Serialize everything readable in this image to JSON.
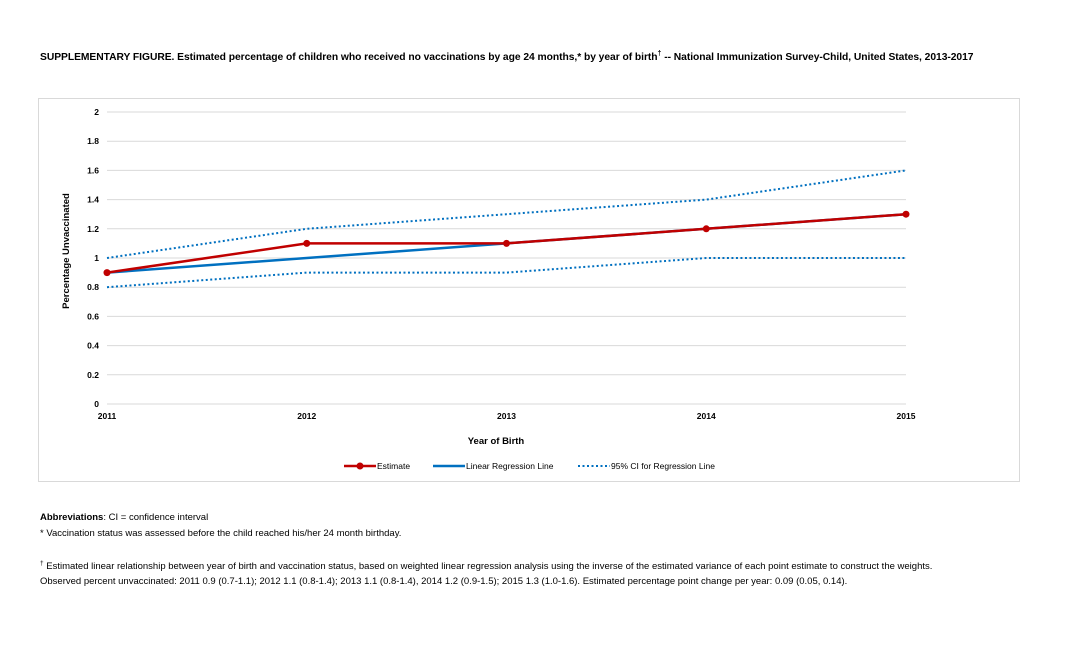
{
  "title": {
    "main": "SUPPLEMENTARY FIGURE. Estimated percentage of children who received no vaccinations by age 24 months,* by year of birth",
    "dagger": "†",
    "rest": " -- National Immunization Survey-Child, United States, 2013-2017"
  },
  "chart_data": {
    "type": "line",
    "title": "Estimated percentage of children who received no vaccinations by age 24 months, by year of birth",
    "xlabel": "Year of Birth",
    "ylabel": "Percentage Unvaccinated",
    "x": [
      2011,
      2012,
      2013,
      2014,
      2015
    ],
    "x_tick_labels": [
      "2011",
      "2012",
      "2013",
      "2014",
      "2015"
    ],
    "ylim": [
      0,
      2
    ],
    "y_ticks": [
      0,
      0.2,
      0.4,
      0.6,
      0.8,
      1,
      1.2,
      1.4,
      1.6,
      1.8,
      2
    ],
    "y_tick_labels": [
      "0",
      "0.2",
      "0.4",
      "0.6",
      "0.8",
      "1",
      "1.2",
      "1.4",
      "1.6",
      "1.8",
      "2"
    ],
    "grid": true,
    "legend_position": "bottom-center",
    "series": [
      {
        "name": "Estimate",
        "color": "#c00000",
        "style": "solid-markers",
        "values": [
          0.9,
          1.1,
          1.1,
          1.2,
          1.3
        ]
      },
      {
        "name": "Linear Regression Line",
        "color": "#0070c0",
        "style": "solid",
        "values": [
          0.9,
          1.0,
          1.1,
          1.2,
          1.3
        ]
      },
      {
        "name": "95% CI for Regression Line",
        "color": "#0070c0",
        "style": "dotted",
        "values": [
          1.0,
          1.2,
          1.3,
          1.4,
          1.6
        ]
      },
      {
        "name": "95% CI for Regression Line (lower)",
        "color": "#0070c0",
        "style": "dotted",
        "legend": false,
        "values": [
          0.8,
          0.9,
          0.9,
          1.0,
          1.0
        ]
      }
    ],
    "legend": [
      "Estimate",
      "Linear Regression Line",
      "95% CI for Regression Line"
    ]
  },
  "notes": {
    "abbrev_label": "Abbreviations",
    "abbrev_text": ": CI = confidence interval",
    "asterisk": "* Vaccination status was assessed before the child reached his/her 24 month birthday.",
    "dagger_mark": "†",
    "dagger_line1": " Estimated linear relationship between year of birth and vaccination status, based on weighted linear regression analysis using the inverse of the estimated variance of each point estimate to construct the weights.",
    "dagger_line2": "Observed percent unvaccinated:  2011 0.9 (0.7-1.1); 2012 1.1 (0.8-1.4); 2013 1.1 (0.8-1.4), 2014 1.2 (0.9-1.5); 2015 1.3 (1.0-1.6). Estimated percentage point change per year:  0.09 (0.05, 0.14)."
  }
}
